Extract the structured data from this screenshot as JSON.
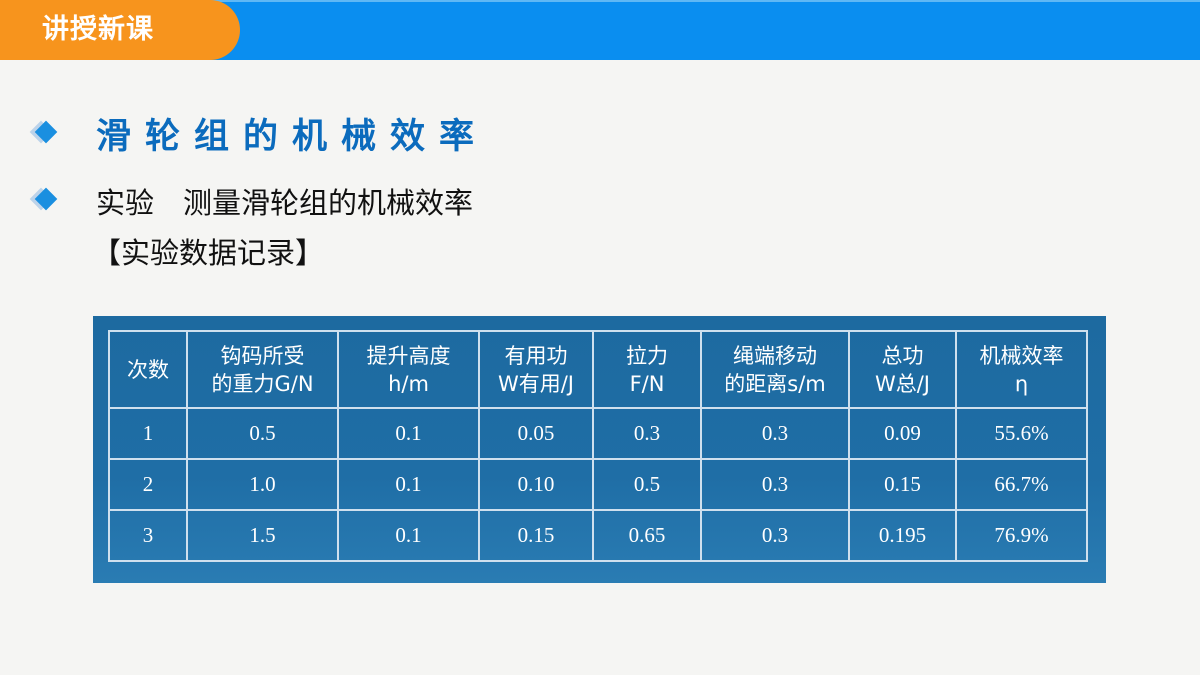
{
  "header": {
    "tag": "讲授新课"
  },
  "title": "滑轮组的机械效率",
  "subtitle": "实验　测量滑轮组的机械效率",
  "section": "【实验数据记录】",
  "table": {
    "headers": [
      {
        "l1": "次数",
        "l2": ""
      },
      {
        "l1": "钩码所受",
        "l2": "的重力G/N"
      },
      {
        "l1": "提升高度",
        "l2": "h/m"
      },
      {
        "l1": "有用功",
        "l2": "W有用/J"
      },
      {
        "l1": "拉力",
        "l2": "F/N"
      },
      {
        "l1": "绳端移动",
        "l2": "的距离s/m"
      },
      {
        "l1": "总功",
        "l2": "W总/J"
      },
      {
        "l1": "机械效率",
        "l2": "η"
      }
    ],
    "rows": [
      [
        "1",
        "0.5",
        "0.1",
        "0.05",
        "0.3",
        "0.3",
        "0.09",
        "55.6%"
      ],
      [
        "2",
        "1.0",
        "0.1",
        "0.10",
        "0.5",
        "0.3",
        "0.15",
        "66.7%"
      ],
      [
        "3",
        "1.5",
        "0.1",
        "0.15",
        "0.65",
        "0.3",
        "0.195",
        "76.9%"
      ]
    ]
  }
}
